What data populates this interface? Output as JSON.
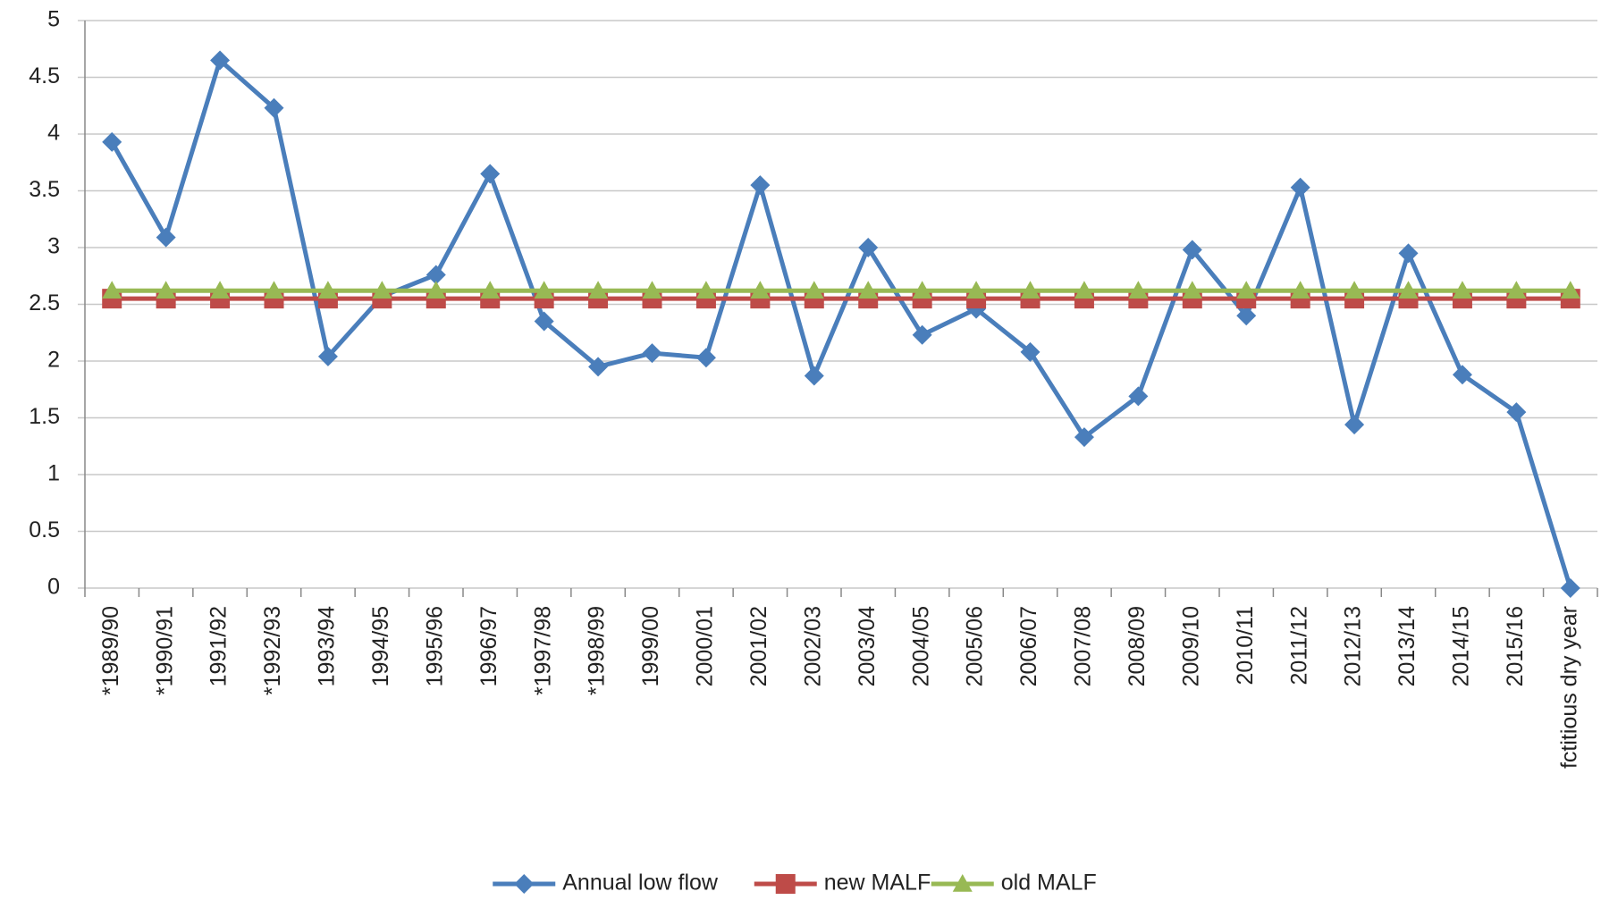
{
  "chart_data": {
    "type": "line",
    "categories": [
      "*1989/90",
      "*1990/91",
      "1991/92",
      "*1992/93",
      "1993/94",
      "1994/95",
      "1995/96",
      "1996/97",
      "*1997/98",
      "*1998/99",
      "1999/00",
      "2000/01",
      "2001/02",
      "2002/03",
      "2003/04",
      "2004/05",
      "2005/06",
      "2006/07",
      "2007/08",
      "2008/09",
      "2009/10",
      "2010/11",
      "2011/12",
      "2012/13",
      "2013/14",
      "2014/15",
      "2015/16",
      "fctitious dry year"
    ],
    "series": [
      {
        "name": "Annual low flow",
        "color": "#4a7ebb",
        "marker": "diamond",
        "values": [
          3.93,
          3.09,
          4.65,
          4.23,
          2.04,
          2.57,
          2.76,
          3.65,
          2.35,
          1.95,
          2.07,
          2.03,
          3.55,
          1.87,
          3.0,
          2.23,
          2.46,
          2.08,
          1.33,
          1.69,
          2.98,
          2.4,
          3.53,
          1.44,
          2.95,
          1.88,
          1.55,
          0
        ]
      },
      {
        "name": "new MALF",
        "color": "#be4b48",
        "marker": "square",
        "values": [
          2.55,
          2.55,
          2.55,
          2.55,
          2.55,
          2.55,
          2.55,
          2.55,
          2.55,
          2.55,
          2.55,
          2.55,
          2.55,
          2.55,
          2.55,
          2.55,
          2.55,
          2.55,
          2.55,
          2.55,
          2.55,
          2.55,
          2.55,
          2.55,
          2.55,
          2.55,
          2.55,
          2.55
        ]
      },
      {
        "name": "old MALF",
        "color": "#98b954",
        "marker": "triangle",
        "values": [
          2.62,
          2.62,
          2.62,
          2.62,
          2.62,
          2.62,
          2.62,
          2.62,
          2.62,
          2.62,
          2.62,
          2.62,
          2.62,
          2.62,
          2.62,
          2.62,
          2.62,
          2.62,
          2.62,
          2.62,
          2.62,
          2.62,
          2.62,
          2.62,
          2.62,
          2.62,
          2.62,
          2.62
        ]
      }
    ],
    "ylim": [
      0,
      5
    ],
    "yticks": [
      0,
      0.5,
      1,
      1.5,
      2,
      2.5,
      3,
      3.5,
      4,
      4.5,
      5
    ],
    "grid": true,
    "legend": "bottom"
  }
}
